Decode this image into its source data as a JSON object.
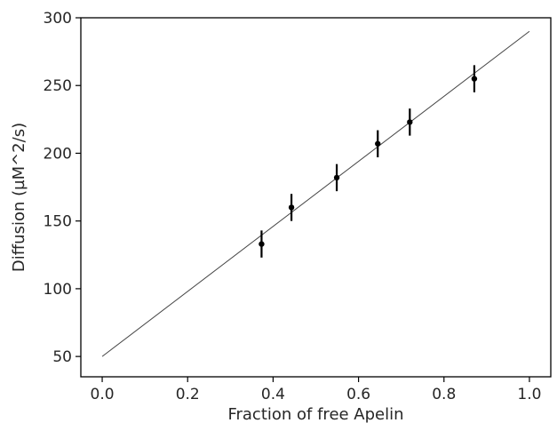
{
  "chart_data": {
    "type": "scatter",
    "title": "",
    "xlabel": "Fraction of free Apelin",
    "ylabel": "Diffusion (µM^2/s)",
    "xlim": [
      -0.05,
      1.05
    ],
    "ylim": [
      35,
      300
    ],
    "xticks": [
      0.0,
      0.2,
      0.4,
      0.6,
      0.8,
      1.0
    ],
    "xtick_labels": [
      "0.0",
      "0.2",
      "0.4",
      "0.6",
      "0.8",
      "1.0"
    ],
    "yticks": [
      50,
      100,
      150,
      200,
      250,
      300
    ],
    "ytick_labels": [
      "50",
      "100",
      "150",
      "200",
      "250",
      "300"
    ],
    "grid": false,
    "legend": "none",
    "colors": {
      "points": "#000000",
      "fit_line": "#444444",
      "axes": "#000000"
    },
    "series": [
      {
        "type": "scatter-errorbar",
        "x": [
          0.373,
          0.443,
          0.549,
          0.645,
          0.72,
          0.871
        ],
        "y": [
          133,
          160,
          182,
          207,
          223,
          255
        ],
        "yerr": [
          10,
          10,
          10,
          10,
          10,
          10
        ]
      },
      {
        "type": "line",
        "x": [
          0.0,
          1.0
        ],
        "y": [
          50,
          290
        ]
      }
    ]
  }
}
